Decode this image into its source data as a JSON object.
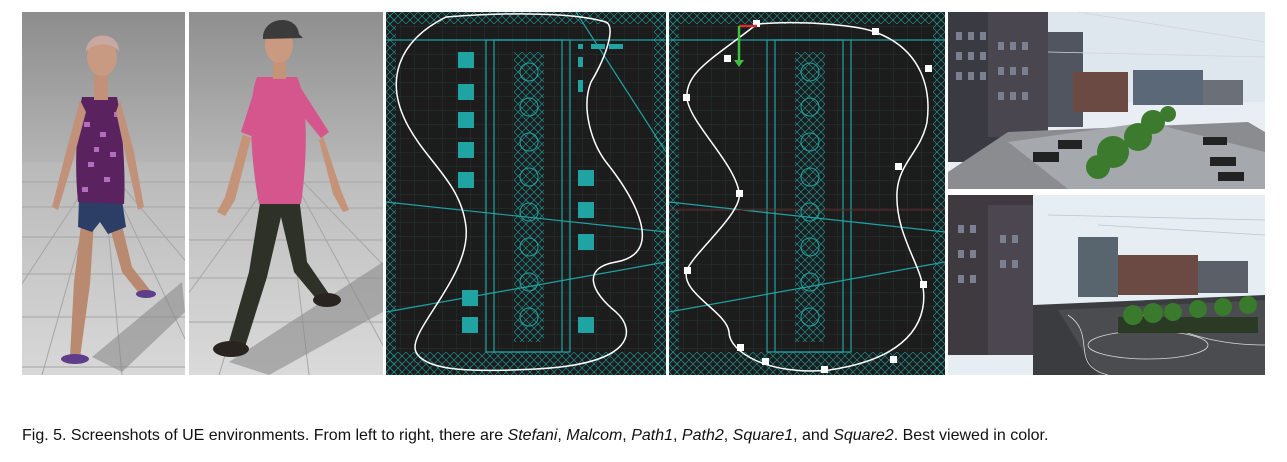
{
  "figure": {
    "panels": [
      {
        "id": "stefani",
        "subject": "Stefani"
      },
      {
        "id": "malcom",
        "subject": "Malcom"
      },
      {
        "id": "path1",
        "subject": "Path1"
      },
      {
        "id": "path2",
        "subject": "Path2"
      },
      {
        "id": "square1",
        "subject": "Square1"
      },
      {
        "id": "square2",
        "subject": "Square2"
      }
    ],
    "caption": {
      "label": "Fig. 5.",
      "text_before": "Screenshots of UE environments. From left to right, there are",
      "names": [
        "Stefani",
        "Malcom",
        "Path1",
        "Path2",
        "Square1",
        "Square2"
      ],
      "sep_comma": ",",
      "sep_and": ", and",
      "text_after": ". Best viewed in color."
    }
  },
  "colors": {
    "grid_cyan": "#1fa3a3",
    "path_white": "#ffffff",
    "blueprint_bg": "#1c1c1c",
    "gizmo_green": "#3fc03f",
    "gizmo_red": "#d03030"
  }
}
